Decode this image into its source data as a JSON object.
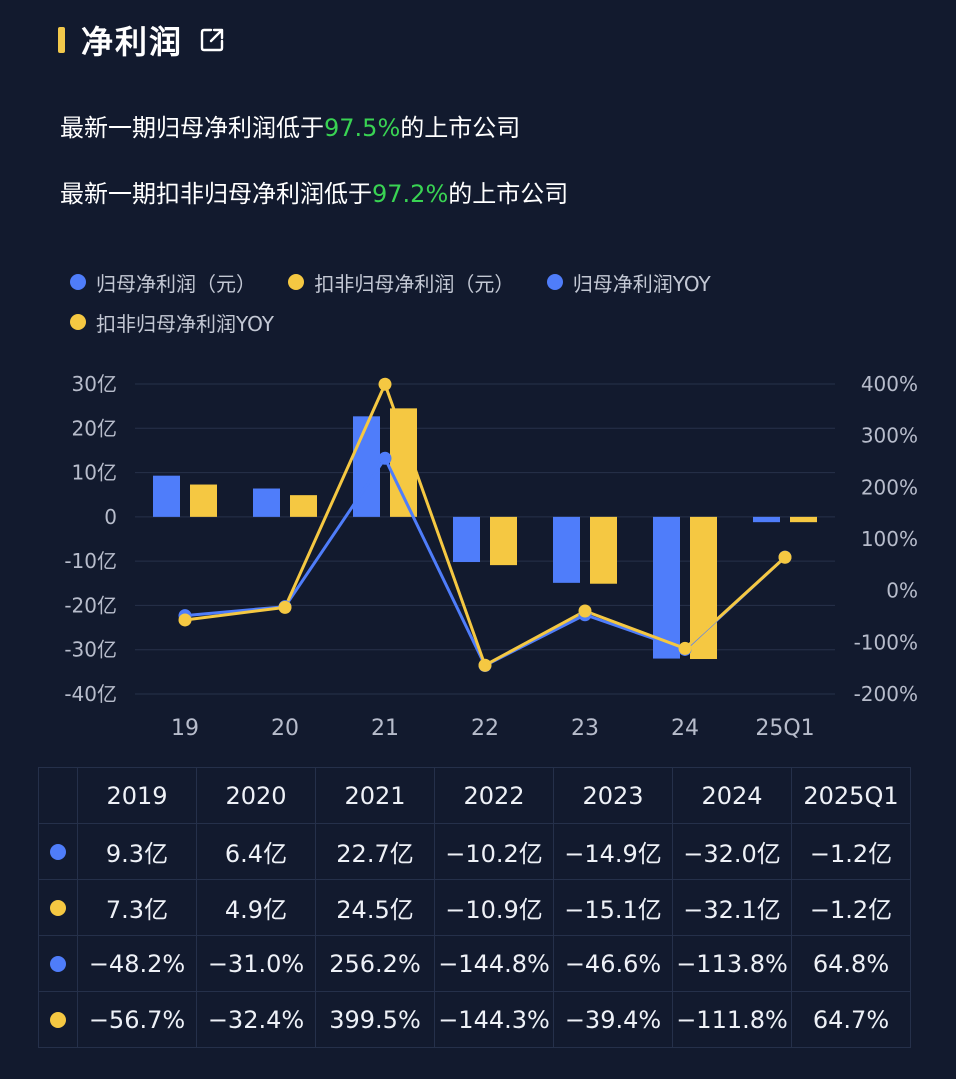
{
  "header": {
    "title": "净利润",
    "icon": "external-link-icon"
  },
  "stats": {
    "line1": {
      "prefix": "最新一期归母净利润低于",
      "pct": "97.5%",
      "suffix": "的上市公司"
    },
    "line2": {
      "prefix": "最新一期扣非归母净利润低于",
      "pct": "97.2%",
      "suffix": "的上市公司"
    }
  },
  "legend": {
    "a": "归母净利润（元）",
    "b": "扣非归母净利润（元）",
    "c": "归母净利润YOY",
    "d": "扣非归母净利润YOY"
  },
  "colors": {
    "blue": "#4f7dfa",
    "yellow": "#f5c842",
    "accent": "#f2c84b",
    "green": "#39d353"
  },
  "chart_data": {
    "type": "bar",
    "categories": [
      "19",
      "20",
      "21",
      "22",
      "23",
      "24",
      "25Q1"
    ],
    "series": [
      {
        "name": "归母净利润（元）",
        "kind": "bar",
        "axis": "left",
        "color": "#4f7dfa",
        "values": [
          9.3,
          6.4,
          22.7,
          -10.2,
          -14.9,
          -32.0,
          -1.2
        ]
      },
      {
        "name": "扣非归母净利润（元）",
        "kind": "bar",
        "axis": "left",
        "color": "#f5c842",
        "values": [
          7.3,
          4.9,
          24.5,
          -10.9,
          -15.1,
          -32.1,
          -1.2
        ]
      },
      {
        "name": "归母净利润YOY",
        "kind": "line",
        "axis": "right",
        "color": "#4f7dfa",
        "values": [
          -48.2,
          -31.0,
          256.2,
          -144.8,
          -46.6,
          -113.8,
          64.8
        ]
      },
      {
        "name": "扣非归母净利润YOY",
        "kind": "line",
        "axis": "right",
        "color": "#f5c842",
        "values": [
          -56.7,
          -32.4,
          399.5,
          -144.3,
          -39.4,
          -111.8,
          64.7
        ]
      }
    ],
    "y_left": {
      "min": -40,
      "max": 30,
      "ticks": [
        30,
        20,
        10,
        0,
        -10,
        -20,
        -30,
        -40
      ],
      "labels": [
        "30亿",
        "20亿",
        "10亿",
        "0",
        "-10亿",
        "-20亿",
        "-30亿",
        "-40亿"
      ]
    },
    "y_right": {
      "min": -200,
      "max": 400,
      "ticks": [
        400,
        300,
        200,
        100,
        0,
        -100,
        -200
      ],
      "labels": [
        "400%",
        "300%",
        "200%",
        "100%",
        "0%",
        "-100%",
        "-200%"
      ]
    },
    "grid": true
  },
  "table": {
    "headers": [
      "2019",
      "2020",
      "2021",
      "2022",
      "2023",
      "2024",
      "2025Q1"
    ],
    "rows": [
      {
        "color": "#4f7dfa",
        "cells": [
          "9.3亿",
          "6.4亿",
          "22.7亿",
          "−10.2亿",
          "−14.9亿",
          "−32.0亿",
          "−1.2亿"
        ]
      },
      {
        "color": "#f5c842",
        "cells": [
          "7.3亿",
          "4.9亿",
          "24.5亿",
          "−10.9亿",
          "−15.1亿",
          "−32.1亿",
          "−1.2亿"
        ]
      },
      {
        "color": "#4f7dfa",
        "cells": [
          "−48.2%",
          "−31.0%",
          "256.2%",
          "−144.8%",
          "−46.6%",
          "−113.8%",
          "64.8%"
        ]
      },
      {
        "color": "#f5c842",
        "cells": [
          "−56.7%",
          "−32.4%",
          "399.5%",
          "−144.3%",
          "−39.4%",
          "−111.8%",
          "64.7%"
        ]
      }
    ]
  }
}
